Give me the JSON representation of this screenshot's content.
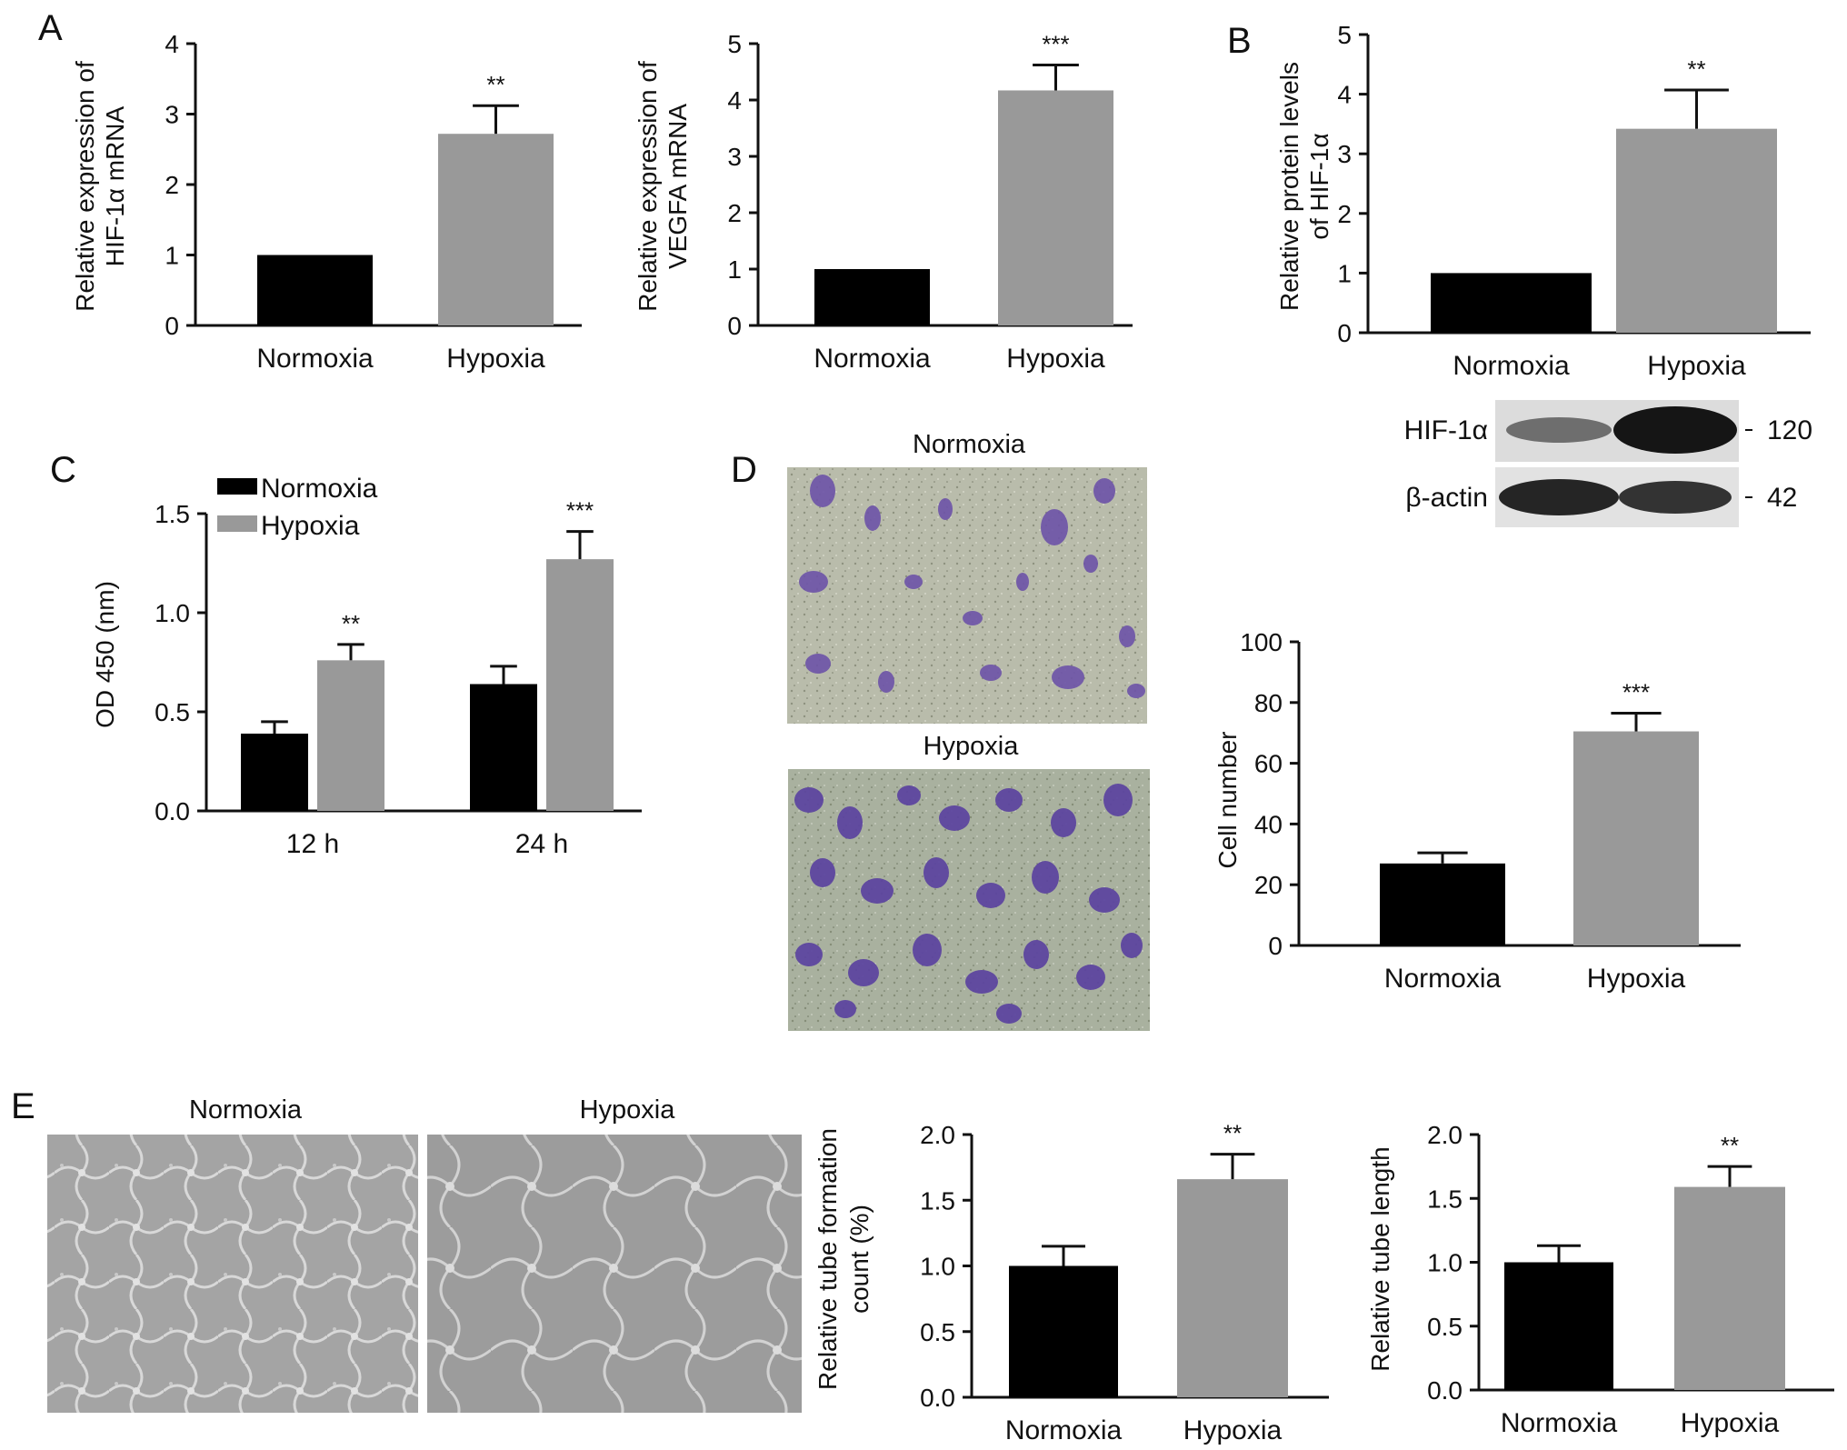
{
  "panels": {
    "A": "A",
    "B": "B",
    "C": "C",
    "D": "D",
    "E": "E"
  },
  "colors": {
    "normoxia": "#000000",
    "hypoxia": "#999999",
    "axis": "#111111"
  },
  "micrographs": {
    "D_top": "Normoxia",
    "D_bottom": "Hypoxia",
    "E_left": "Normoxia",
    "E_right": "Hypoxia"
  },
  "blot": {
    "rows": [
      {
        "label": "HIF-1α",
        "marker": "120"
      },
      {
        "label": "β-actin",
        "marker": "42"
      }
    ]
  },
  "chart_data": [
    {
      "id": "A1",
      "type": "bar",
      "ylabel": [
        "Relative expression of",
        "HIF-1α mRNA"
      ],
      "categories": [
        "Normoxia",
        "Hypoxia"
      ],
      "values": [
        1.0,
        2.72
      ],
      "errors": [
        0,
        0.4
      ],
      "significance": [
        "",
        "**"
      ],
      "ylim": [
        0,
        4
      ],
      "yticks": [
        "0",
        "1",
        "2",
        "3",
        "4"
      ]
    },
    {
      "id": "A2",
      "type": "bar",
      "ylabel": [
        "Relative expression of",
        "VEGFA mRNA"
      ],
      "categories": [
        "Normoxia",
        "Hypoxia"
      ],
      "values": [
        1.0,
        4.17
      ],
      "errors": [
        0,
        0.45
      ],
      "significance": [
        "",
        "***"
      ],
      "ylim": [
        0,
        5
      ],
      "yticks": [
        "0",
        "1",
        "2",
        "3",
        "4",
        "5"
      ]
    },
    {
      "id": "B",
      "type": "bar",
      "ylabel": [
        "Relative protein levels",
        "of HIF-1α"
      ],
      "categories": [
        "Normoxia",
        "Hypoxia"
      ],
      "values": [
        1.0,
        3.42
      ],
      "errors": [
        0,
        0.65
      ],
      "significance": [
        "",
        "**"
      ],
      "ylim": [
        0,
        5
      ],
      "yticks": [
        "0",
        "1",
        "2",
        "3",
        "4",
        "5"
      ]
    },
    {
      "id": "C",
      "type": "bar",
      "ylabel": [
        "OD 450 (nm)"
      ],
      "categories": [
        "12 h",
        "24 h"
      ],
      "series": [
        {
          "name": "Normoxia",
          "values": [
            0.39,
            0.64
          ],
          "errors": [
            0.06,
            0.09
          ],
          "significance": [
            "",
            ""
          ]
        },
        {
          "name": "Hypoxia",
          "values": [
            0.76,
            1.27
          ],
          "errors": [
            0.08,
            0.14
          ],
          "significance": [
            "**",
            "***"
          ]
        }
      ],
      "ylim": [
        0,
        1.5
      ],
      "yticks": [
        "0.0",
        "0.5",
        "1.0",
        "1.5"
      ],
      "legend": "top-left"
    },
    {
      "id": "D",
      "type": "bar",
      "ylabel": [
        "Cell number"
      ],
      "categories": [
        "Normoxia",
        "Hypoxia"
      ],
      "values": [
        27,
        70.5
      ],
      "errors": [
        3.5,
        6
      ],
      "significance": [
        "",
        "***"
      ],
      "ylim": [
        0,
        100
      ],
      "yticks": [
        "0",
        "20",
        "40",
        "60",
        "80",
        "100"
      ]
    },
    {
      "id": "E1",
      "type": "bar",
      "ylabel": [
        "Relative tube formation",
        "count (%)"
      ],
      "categories": [
        "Normoxia",
        "Hypoxia"
      ],
      "values": [
        1.0,
        1.66
      ],
      "errors": [
        0.15,
        0.19
      ],
      "significance": [
        "",
        "**"
      ],
      "ylim": [
        0,
        2.0
      ],
      "yticks": [
        "0.0",
        "0.5",
        "1.0",
        "1.5",
        "2.0"
      ]
    },
    {
      "id": "E2",
      "type": "bar",
      "ylabel": [
        "Relative tube length"
      ],
      "categories": [
        "Normoxia",
        "Hypoxia"
      ],
      "values": [
        1.0,
        1.59
      ],
      "errors": [
        0.13,
        0.16
      ],
      "significance": [
        "",
        "**"
      ],
      "ylim": [
        0,
        2.0
      ],
      "yticks": [
        "0.0",
        "0.5",
        "1.0",
        "1.5",
        "2.0"
      ]
    }
  ]
}
